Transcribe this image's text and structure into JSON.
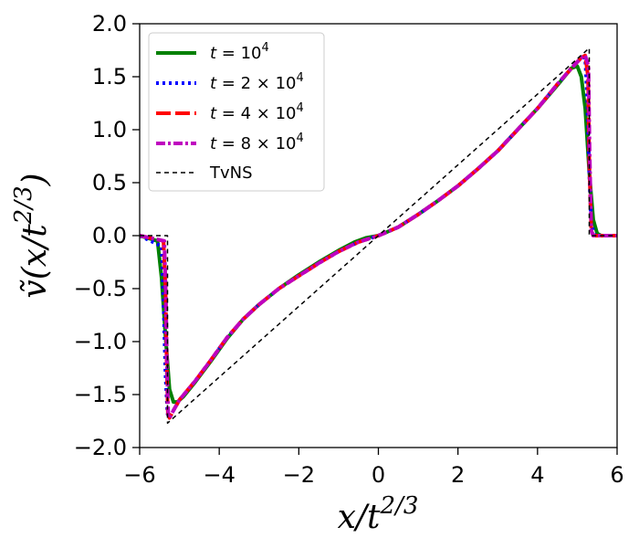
{
  "chart_data": {
    "type": "line",
    "xlabel": "x/t^{2/3}",
    "ylabel": "ṽ(x/t^{2/3})",
    "xlim": [
      -6,
      6
    ],
    "ylim": [
      -2.0,
      2.0
    ],
    "xticks": [
      -6,
      -4,
      -2,
      0,
      2,
      4,
      6
    ],
    "xtick_labels": [
      "−6",
      "−4",
      "−2",
      "0",
      "2",
      "4",
      "6"
    ],
    "yticks": [
      -2.0,
      -1.5,
      -1.0,
      -0.5,
      0.0,
      0.5,
      1.0,
      1.5,
      2.0
    ],
    "ytick_labels": [
      "−2.0",
      "−1.5",
      "−1.0",
      "−0.5",
      "0.0",
      "0.5",
      "1.0",
      "1.5",
      "2.0"
    ],
    "grid": false,
    "legend_position": "top-left",
    "series": [
      {
        "name": "t = 10^4",
        "color": "#008000",
        "style": "solid",
        "x": [
          -6,
          -5.55,
          -5.45,
          -5.35,
          -5.25,
          -5.15,
          -5.05,
          -4.9,
          -4.6,
          -4.2,
          -3.8,
          -3.4,
          -3.0,
          -2.5,
          -2.0,
          -1.5,
          -1.0,
          -0.6,
          -0.3,
          0,
          0.5,
          1,
          1.5,
          2,
          2.5,
          3,
          3.5,
          4,
          4.5,
          4.85,
          5.0,
          5.1,
          5.2,
          5.3,
          5.4,
          5.5,
          5.6,
          6
        ],
        "y": [
          0,
          -0.05,
          -0.4,
          -0.95,
          -1.45,
          -1.57,
          -1.57,
          -1.52,
          -1.38,
          -1.18,
          -0.97,
          -0.79,
          -0.65,
          -0.5,
          -0.37,
          -0.25,
          -0.14,
          -0.06,
          -0.02,
          0,
          0.08,
          0.2,
          0.33,
          0.47,
          0.63,
          0.8,
          1.0,
          1.2,
          1.42,
          1.58,
          1.6,
          1.5,
          1.2,
          0.6,
          0.15,
          0.02,
          0,
          0
        ]
      },
      {
        "name": "t = 2 × 10^4",
        "color": "#0000ff",
        "style": "dotted",
        "x": [
          -6,
          -5.45,
          -5.4,
          -5.35,
          -5.3,
          -5.25,
          -5.15,
          -5.0,
          -4.6,
          -4.2,
          -3.8,
          -3.4,
          -3.0,
          -2.5,
          -2.0,
          -1.5,
          -1.0,
          -0.5,
          0,
          0.5,
          1,
          1.5,
          2,
          2.5,
          3,
          3.5,
          4,
          4.5,
          4.9,
          5.1,
          5.2,
          5.25,
          5.3,
          5.35,
          5.45,
          6
        ],
        "y": [
          0,
          -0.1,
          -0.6,
          -1.3,
          -1.68,
          -1.72,
          -1.65,
          -1.55,
          -1.37,
          -1.17,
          -0.96,
          -0.79,
          -0.65,
          -0.5,
          -0.38,
          -0.26,
          -0.15,
          -0.06,
          0,
          0.08,
          0.2,
          0.33,
          0.47,
          0.63,
          0.8,
          1.0,
          1.2,
          1.43,
          1.6,
          1.68,
          1.68,
          1.3,
          0.6,
          0.1,
          0,
          0
        ]
      },
      {
        "name": "t = 4 × 10^4",
        "color": "#ff0000",
        "style": "dashed",
        "x": [
          -6,
          -5.4,
          -5.35,
          -5.32,
          -5.29,
          -5.25,
          -5.15,
          -5.0,
          -4.6,
          -4.2,
          -3.8,
          -3.4,
          -3.0,
          -2.5,
          -2.0,
          -1.5,
          -1.0,
          -0.5,
          0,
          0.5,
          1,
          1.5,
          2,
          2.5,
          3,
          3.5,
          4,
          4.5,
          4.9,
          5.1,
          5.2,
          5.27,
          5.3,
          5.35,
          5.4,
          6
        ],
        "y": [
          0,
          -0.05,
          -0.5,
          -1.2,
          -1.68,
          -1.72,
          -1.65,
          -1.55,
          -1.37,
          -1.17,
          -0.96,
          -0.79,
          -0.65,
          -0.5,
          -0.38,
          -0.26,
          -0.15,
          -0.06,
          0,
          0.08,
          0.2,
          0.33,
          0.47,
          0.63,
          0.8,
          1.0,
          1.2,
          1.43,
          1.6,
          1.68,
          1.7,
          1.5,
          0.7,
          0.05,
          0,
          0
        ]
      },
      {
        "name": "t = 8 × 10^4",
        "color": "#bf00bf",
        "style": "dashdot",
        "x": [
          -6,
          -5.38,
          -5.34,
          -5.31,
          -5.28,
          -5.25,
          -5.15,
          -5.0,
          -4.6,
          -4.2,
          -3.8,
          -3.4,
          -3.0,
          -2.5,
          -2.0,
          -1.5,
          -1.0,
          -0.5,
          0,
          0.5,
          1,
          1.5,
          2,
          2.5,
          3,
          3.5,
          4,
          4.5,
          4.9,
          5.1,
          5.2,
          5.28,
          5.31,
          5.35,
          5.4,
          6
        ],
        "y": [
          0,
          -0.05,
          -0.6,
          -1.3,
          -1.7,
          -1.72,
          -1.65,
          -1.55,
          -1.37,
          -1.17,
          -0.96,
          -0.79,
          -0.65,
          -0.5,
          -0.38,
          -0.26,
          -0.15,
          -0.06,
          0,
          0.08,
          0.2,
          0.33,
          0.47,
          0.63,
          0.8,
          1.0,
          1.2,
          1.43,
          1.6,
          1.68,
          1.7,
          1.6,
          0.8,
          0.05,
          0,
          0
        ]
      },
      {
        "name": "TvNS",
        "color": "#000000",
        "style": "thin-dashed",
        "x": [
          -6,
          -5.3,
          -5.3,
          0,
          5.3,
          5.3,
          6
        ],
        "y": [
          0,
          0,
          -1.77,
          0,
          1.77,
          0,
          0
        ]
      }
    ]
  }
}
